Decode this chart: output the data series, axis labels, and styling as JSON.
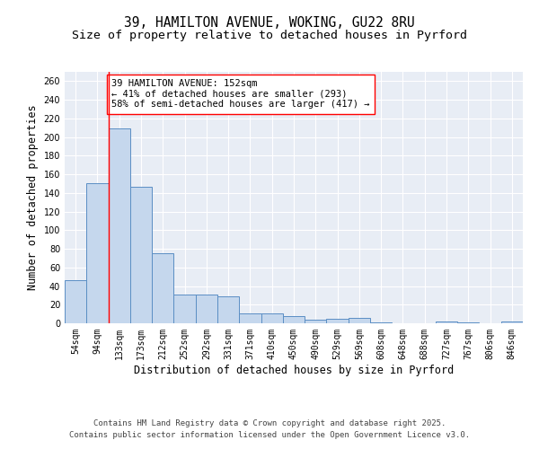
{
  "title_line1": "39, HAMILTON AVENUE, WOKING, GU22 8RU",
  "title_line2": "Size of property relative to detached houses in Pyrford",
  "xlabel": "Distribution of detached houses by size in Pyrford",
  "ylabel": "Number of detached properties",
  "categories": [
    "54sqm",
    "94sqm",
    "133sqm",
    "173sqm",
    "212sqm",
    "252sqm",
    "292sqm",
    "331sqm",
    "371sqm",
    "410sqm",
    "450sqm",
    "490sqm",
    "529sqm",
    "569sqm",
    "608sqm",
    "648sqm",
    "688sqm",
    "727sqm",
    "767sqm",
    "806sqm",
    "846sqm"
  ],
  "values": [
    46,
    150,
    209,
    147,
    75,
    31,
    31,
    29,
    11,
    11,
    8,
    4,
    5,
    6,
    1,
    0,
    0,
    2,
    1,
    0,
    2
  ],
  "bar_color": "#c5d7ed",
  "bar_edgecolor": "#5b8ec4",
  "redline_index": 2,
  "annotation_text": "39 HAMILTON AVENUE: 152sqm\n← 41% of detached houses are smaller (293)\n58% of semi-detached houses are larger (417) →",
  "annotation_box_facecolor": "white",
  "annotation_box_edgecolor": "red",
  "ylim": [
    0,
    270
  ],
  "yticks": [
    0,
    20,
    40,
    60,
    80,
    100,
    120,
    140,
    160,
    180,
    200,
    220,
    240,
    260
  ],
  "background_color": "#e8edf5",
  "grid_color": "white",
  "footer_line1": "Contains HM Land Registry data © Crown copyright and database right 2025.",
  "footer_line2": "Contains public sector information licensed under the Open Government Licence v3.0.",
  "title_fontsize": 10.5,
  "subtitle_fontsize": 9.5,
  "axis_label_fontsize": 8.5,
  "tick_fontsize": 7,
  "annotation_fontsize": 7.5,
  "footer_fontsize": 6.5
}
